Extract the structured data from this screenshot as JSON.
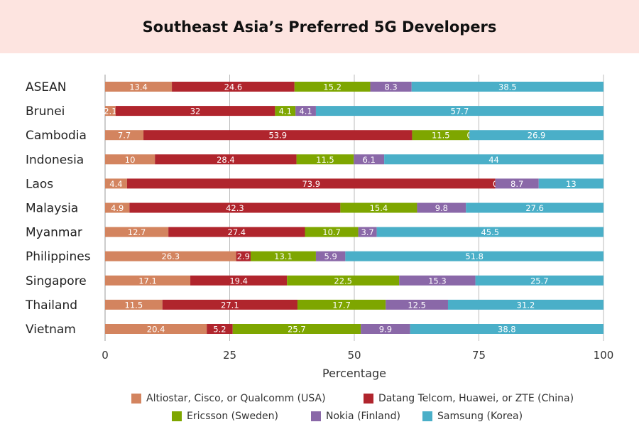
{
  "chart_data": {
    "type": "bar",
    "orientation": "horizontal",
    "stacked": true,
    "title": "Southeast Asia’s Preferred 5G Developers",
    "xlabel": "Percentage",
    "ylabel": "",
    "xlim": [
      0,
      100
    ],
    "xticks": [
      "0",
      "25",
      "50",
      "75",
      "100"
    ],
    "grid": true,
    "legend_position": "bottom",
    "categories": [
      "ASEAN",
      "Brunei",
      "Cambodia",
      "Indonesia",
      "Laos",
      "Malaysia",
      "Myanmar",
      "Philippines",
      "Singapore",
      "Thailand",
      "Vietnam"
    ],
    "series": [
      {
        "name": "Altiostar, Cisco, or Qualcomm (USA)",
        "color": "#d3845f",
        "values": [
          13.4,
          2.1,
          7.7,
          10,
          4.4,
          4.9,
          12.7,
          26.3,
          17.1,
          11.5,
          20.4
        ]
      },
      {
        "name": "Datang Telcom, Huawei, or ZTE (China)",
        "color": "#b0252d",
        "values": [
          24.6,
          32,
          53.9,
          28.4,
          73.9,
          42.3,
          27.4,
          2.9,
          19.4,
          27.1,
          5.2
        ]
      },
      {
        "name": "Ericsson (Sweden)",
        "color": "#7ea600",
        "values": [
          15.2,
          4.1,
          11.5,
          11.5,
          0,
          15.4,
          10.7,
          13.1,
          22.5,
          17.7,
          25.7
        ]
      },
      {
        "name": "Nokia (Finland)",
        "color": "#8a68a8",
        "values": [
          8.3,
          4.1,
          0,
          6.1,
          8.7,
          9.8,
          3.7,
          5.9,
          15.3,
          12.5,
          9.9
        ]
      },
      {
        "name": "Samsung (Korea)",
        "color": "#4aafc8",
        "values": [
          38.5,
          57.7,
          26.9,
          44,
          13,
          27.6,
          45.5,
          51.8,
          25.7,
          31.2,
          38.8
        ]
      }
    ]
  }
}
